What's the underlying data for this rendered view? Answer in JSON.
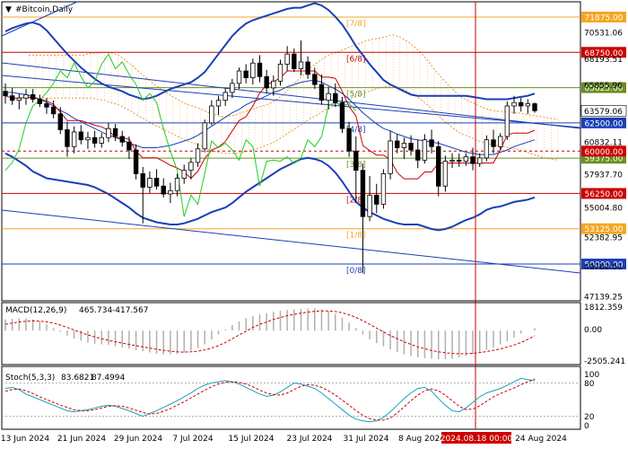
{
  "chart_data": {
    "type": "candlestick",
    "title": "#Bitcoin,Daily",
    "date_labels": [
      "13 Jun 2024",
      "21 Jun 2024",
      "29 Jun 2024",
      "7 Jul 2024",
      "15 Jul 2024",
      "23 Jul 2024",
      "31 Jul 2024",
      "8 Aug 2024",
      "16 Aug 2024",
      "24 Aug 2024"
    ],
    "crosshair_date": "2024.08.18 00:00",
    "price_scale": [
      70531.06,
      68193.51,
      65855.96,
      63579.06,
      60832.11,
      57937.7,
      55004.8,
      52382.95,
      49782.51,
      47139.25
    ],
    "ylim": [
      47139.25,
      73100
    ],
    "current_price": 63579.06,
    "murrey_levels": [
      {
        "label": "[7/8]",
        "price": 71875,
        "price_text": "71875.00",
        "color": "#f5a623"
      },
      {
        "label": "[6/8]",
        "price": 68750,
        "price_text": "68750.00",
        "color": "#cc0000"
      },
      {
        "label": "[5/8]",
        "price": 65625,
        "price_text": "65625.00",
        "color": "#6b8e23"
      },
      {
        "label": "[4/8]",
        "price": 62500,
        "price_text": "62500.00",
        "color": "#1a3fb5"
      },
      {
        "label": "[3/8]",
        "price": 59375,
        "price_text": "59375.00",
        "color": "#6b8e23"
      },
      {
        "label": "[2/8]",
        "price": 56250,
        "price_text": "56250.00",
        "color": "#cc0000"
      },
      {
        "label": "[1/8]",
        "price": 53125,
        "price_text": "53125.00",
        "color": "#f5a623"
      },
      {
        "label": "[0/8]",
        "price": 50000,
        "price_text": "50000.00",
        "color": "#1a3fb5"
      }
    ],
    "extra_level": {
      "price": 60000,
      "price_text": "60000.00",
      "color": "#cc0000",
      "style": "dashed"
    },
    "candles": [
      {
        "o": 65300,
        "h": 66000,
        "l": 64200,
        "c": 64900
      },
      {
        "o": 64900,
        "h": 65600,
        "l": 64100,
        "c": 64500
      },
      {
        "o": 64500,
        "h": 65100,
        "l": 63700,
        "c": 64700
      },
      {
        "o": 64700,
        "h": 65500,
        "l": 64100,
        "c": 65000
      },
      {
        "o": 65000,
        "h": 65500,
        "l": 64300,
        "c": 64600
      },
      {
        "o": 64600,
        "h": 65000,
        "l": 63900,
        "c": 64200
      },
      {
        "o": 64200,
        "h": 64700,
        "l": 63300,
        "c": 63900
      },
      {
        "o": 63900,
        "h": 64500,
        "l": 62900,
        "c": 63300
      },
      {
        "o": 63300,
        "h": 63900,
        "l": 61500,
        "c": 61900
      },
      {
        "o": 61900,
        "h": 62600,
        "l": 59500,
        "c": 60400
      },
      {
        "o": 60400,
        "h": 62200,
        "l": 59800,
        "c": 61700
      },
      {
        "o": 61700,
        "h": 62300,
        "l": 60600,
        "c": 61000
      },
      {
        "o": 61000,
        "h": 61700,
        "l": 60200,
        "c": 61200
      },
      {
        "o": 61200,
        "h": 61800,
        "l": 60300,
        "c": 60700
      },
      {
        "o": 60700,
        "h": 61600,
        "l": 60300,
        "c": 61200
      },
      {
        "o": 61200,
        "h": 62500,
        "l": 60800,
        "c": 62000
      },
      {
        "o": 62000,
        "h": 62400,
        "l": 60900,
        "c": 61300
      },
      {
        "o": 61300,
        "h": 61800,
        "l": 60400,
        "c": 60800
      },
      {
        "o": 60800,
        "h": 61300,
        "l": 59300,
        "c": 60100
      },
      {
        "o": 60100,
        "h": 60600,
        "l": 57500,
        "c": 58000
      },
      {
        "o": 58000,
        "h": 58600,
        "l": 53600,
        "c": 56800
      },
      {
        "o": 56800,
        "h": 58200,
        "l": 56300,
        "c": 57600
      },
      {
        "o": 57600,
        "h": 58400,
        "l": 56600,
        "c": 56900
      },
      {
        "o": 56900,
        "h": 57600,
        "l": 55900,
        "c": 56200
      },
      {
        "o": 56200,
        "h": 57200,
        "l": 55400,
        "c": 56500
      },
      {
        "o": 56500,
        "h": 58000,
        "l": 56000,
        "c": 57600
      },
      {
        "o": 57600,
        "h": 58800,
        "l": 57100,
        "c": 58300
      },
      {
        "o": 58300,
        "h": 59400,
        "l": 57500,
        "c": 59000
      },
      {
        "o": 59000,
        "h": 60700,
        "l": 58600,
        "c": 60200
      },
      {
        "o": 60200,
        "h": 62800,
        "l": 59900,
        "c": 62500
      },
      {
        "o": 62500,
        "h": 64500,
        "l": 62300,
        "c": 64000
      },
      {
        "o": 64000,
        "h": 64900,
        "l": 63200,
        "c": 64500
      },
      {
        "o": 64500,
        "h": 65600,
        "l": 64000,
        "c": 65200
      },
      {
        "o": 65200,
        "h": 66400,
        "l": 64700,
        "c": 66000
      },
      {
        "o": 66000,
        "h": 67400,
        "l": 65500,
        "c": 67100
      },
      {
        "o": 67100,
        "h": 67700,
        "l": 66000,
        "c": 66500
      },
      {
        "o": 66500,
        "h": 68200,
        "l": 65900,
        "c": 67800
      },
      {
        "o": 67800,
        "h": 68500,
        "l": 66100,
        "c": 66600
      },
      {
        "o": 66600,
        "h": 67200,
        "l": 65100,
        "c": 65600
      },
      {
        "o": 65600,
        "h": 66700,
        "l": 64900,
        "c": 66200
      },
      {
        "o": 66200,
        "h": 68100,
        "l": 65800,
        "c": 67700
      },
      {
        "o": 67700,
        "h": 69300,
        "l": 67100,
        "c": 68600
      },
      {
        "o": 68600,
        "h": 69100,
        "l": 67000,
        "c": 67300
      },
      {
        "o": 67300,
        "h": 69800,
        "l": 66700,
        "c": 67900
      },
      {
        "o": 67900,
        "h": 68400,
        "l": 66400,
        "c": 66800
      },
      {
        "o": 66800,
        "h": 67400,
        "l": 65500,
        "c": 65900
      },
      {
        "o": 65900,
        "h": 66800,
        "l": 64100,
        "c": 64500
      },
      {
        "o": 64500,
        "h": 65700,
        "l": 63700,
        "c": 65100
      },
      {
        "o": 65100,
        "h": 66000,
        "l": 63900,
        "c": 64300
      },
      {
        "o": 64300,
        "h": 64800,
        "l": 61600,
        "c": 62000
      },
      {
        "o": 62000,
        "h": 62600,
        "l": 59500,
        "c": 60000
      },
      {
        "o": 60000,
        "h": 61300,
        "l": 55500,
        "c": 58300
      },
      {
        "o": 58300,
        "h": 58900,
        "l": 49200,
        "c": 54200
      },
      {
        "o": 54200,
        "h": 57800,
        "l": 53800,
        "c": 56100
      },
      {
        "o": 56100,
        "h": 57100,
        "l": 54500,
        "c": 55300
      },
      {
        "o": 55300,
        "h": 58400,
        "l": 54900,
        "c": 58000
      },
      {
        "o": 58000,
        "h": 61800,
        "l": 57500,
        "c": 60900
      },
      {
        "o": 60900,
        "h": 61500,
        "l": 59800,
        "c": 60300
      },
      {
        "o": 60300,
        "h": 61200,
        "l": 59300,
        "c": 60700
      },
      {
        "o": 60700,
        "h": 61400,
        "l": 59600,
        "c": 60100
      },
      {
        "o": 60100,
        "h": 61000,
        "l": 58500,
        "c": 59200
      },
      {
        "o": 59200,
        "h": 61500,
        "l": 58900,
        "c": 61000
      },
      {
        "o": 61000,
        "h": 61900,
        "l": 59800,
        "c": 60400
      },
      {
        "o": 60400,
        "h": 60900,
        "l": 56000,
        "c": 56900
      },
      {
        "o": 56900,
        "h": 59600,
        "l": 56400,
        "c": 59100
      },
      {
        "o": 59100,
        "h": 59800,
        "l": 58500,
        "c": 59200
      },
      {
        "o": 59200,
        "h": 59800,
        "l": 58600,
        "c": 59100
      },
      {
        "o": 59100,
        "h": 59800,
        "l": 58700,
        "c": 59500
      },
      {
        "o": 59500,
        "h": 60300,
        "l": 58300,
        "c": 58900
      },
      {
        "o": 58900,
        "h": 59800,
        "l": 58600,
        "c": 59400
      },
      {
        "o": 59400,
        "h": 61400,
        "l": 59100,
        "c": 61000
      },
      {
        "o": 61000,
        "h": 61900,
        "l": 59800,
        "c": 60400
      },
      {
        "o": 60400,
        "h": 61600,
        "l": 60100,
        "c": 61300
      },
      {
        "o": 61300,
        "h": 64400,
        "l": 61000,
        "c": 64000
      },
      {
        "o": 64000,
        "h": 64900,
        "l": 63300,
        "c": 64300
      },
      {
        "o": 64300,
        "h": 64700,
        "l": 63500,
        "c": 64000
      },
      {
        "o": 64000,
        "h": 64600,
        "l": 63300,
        "c": 64200
      },
      {
        "o": 64200,
        "h": 64300,
        "l": 63400,
        "c": 63579
      }
    ],
    "bollinger": {
      "upper": [
        70600,
        70900,
        71100,
        71300,
        71400,
        71200,
        70700,
        70000,
        69300,
        68600,
        68000,
        67400,
        66900,
        66400,
        66000,
        65700,
        65500,
        65300,
        65000,
        64800,
        64600,
        64700,
        64900,
        65200,
        65500,
        65700,
        65900,
        66100,
        66500,
        67000,
        67800,
        68600,
        69400,
        70200,
        70800,
        71300,
        71600,
        71800,
        72000,
        72200,
        72400,
        72600,
        72700,
        72700,
        72900,
        73100,
        72900,
        72500,
        71900,
        71200,
        70300,
        69300,
        68500,
        67700,
        67000,
        66300,
        65900,
        65600,
        65300,
        65000,
        64900,
        64900,
        64900,
        64900,
        64900,
        64900,
        64900,
        64900,
        64800,
        64700,
        64600,
        64600,
        64600,
        64600,
        64700,
        64800,
        64900,
        65100
      ],
      "middle": [
        65200,
        65200,
        65100,
        65000,
        64800,
        64600,
        64300,
        64000,
        63600,
        63300,
        62900,
        62600,
        62300,
        62000,
        61700,
        61400,
        61200,
        61000,
        60700,
        60500,
        60300,
        60300,
        60300,
        60400,
        60500,
        60700,
        60900,
        61100,
        61400,
        61800,
        62200,
        62600,
        63000,
        63400,
        63700,
        64100,
        64400,
        64600,
        64900,
        65200,
        65400,
        65700,
        65900,
        66100,
        66200,
        66300,
        66100,
        65800,
        65500,
        65100,
        64600,
        64000,
        63400,
        62900,
        62400,
        62000,
        61800,
        61500,
        61300,
        61100,
        61000,
        60900,
        60800,
        60700,
        60500,
        60300,
        60100,
        59900,
        59800,
        59700,
        59700,
        59700,
        59900,
        60100,
        60400,
        60600,
        60800,
        61000
      ],
      "lower": [
        59800,
        59500,
        59100,
        58700,
        58200,
        57900,
        57600,
        57500,
        57400,
        57300,
        57200,
        57100,
        57000,
        56800,
        56500,
        56200,
        55800,
        55400,
        55000,
        54500,
        54100,
        53900,
        53700,
        53600,
        53500,
        53500,
        53600,
        53800,
        54000,
        54300,
        54600,
        54800,
        55000,
        55400,
        55900,
        56400,
        56800,
        57200,
        57600,
        58000,
        58400,
        58700,
        59000,
        59300,
        59400,
        59300,
        59100,
        58700,
        58100,
        57300,
        56400,
        55500,
        55000,
        54600,
        54300,
        54000,
        53800,
        53600,
        53500,
        53500,
        53500,
        53300,
        53100,
        53000,
        53100,
        53300,
        53600,
        53900,
        54100,
        54400,
        54800,
        55000,
        55100,
        55300,
        55500,
        55600,
        55700,
        55900
      ]
    },
    "indicators": [
      {
        "name": "MACD(12,26,9)",
        "values": [
          "465.734",
          "-417.567"
        ],
        "scale": [
          "1812.359",
          "0.00",
          "-2505.241"
        ]
      },
      {
        "name": "Stoch(5,3,3)",
        "values": [
          "83.6821",
          "87.4994"
        ],
        "scale": [
          "100",
          "80",
          "20",
          "0"
        ]
      }
    ],
    "macd_hist": [
      900,
      950,
      1000,
      980,
      900,
      750,
      500,
      200,
      -100,
      -400,
      -650,
      -800,
      -950,
      -1050,
      -1100,
      -1150,
      -1250,
      -1350,
      -1450,
      -1550,
      -1650,
      -1750,
      -1850,
      -1900,
      -1900,
      -1850,
      -1750,
      -1600,
      -1400,
      -1100,
      -700,
      -300,
      100,
      450,
      750,
      1000,
      1150,
      1300,
      1400,
      1500,
      1600,
      1650,
      1700,
      1750,
      1780,
      1790,
      1700,
      1550,
      1350,
      1050,
      650,
      200,
      -300,
      -700,
      -1000,
      -1250,
      -1500,
      -1700,
      -1900,
      -2050,
      -2150,
      -2200,
      -2250,
      -2300,
      -2300,
      -2250,
      -2150,
      -2050,
      -1900,
      -1750,
      -1550,
      -1350,
      -1100,
      -850,
      -550,
      -250,
      0,
      200
    ],
    "macd_signal": [
      500,
      600,
      700,
      750,
      780,
      760,
      700,
      600,
      450,
      250,
      50,
      -150,
      -350,
      -500,
      -650,
      -780,
      -900,
      -1000,
      -1100,
      -1200,
      -1300,
      -1400,
      -1500,
      -1580,
      -1650,
      -1700,
      -1720,
      -1700,
      -1650,
      -1550,
      -1400,
      -1200,
      -950,
      -650,
      -350,
      -50,
      250,
      500,
      700,
      900,
      1050,
      1200,
      1300,
      1400,
      1480,
      1550,
      1580,
      1580,
      1530,
      1430,
      1270,
      1060,
      800,
      500,
      200,
      -100,
      -400,
      -650,
      -900,
      -1100,
      -1300,
      -1450,
      -1600,
      -1700,
      -1780,
      -1820,
      -1850,
      -1850,
      -1820,
      -1760,
      -1680,
      -1580,
      -1460,
      -1320,
      -1150,
      -950,
      -700,
      -418
    ],
    "stoch_k": [
      70,
      72,
      68,
      60,
      55,
      50,
      45,
      40,
      35,
      30,
      28,
      30,
      32,
      35,
      38,
      40,
      38,
      34,
      30,
      25,
      20,
      25,
      30,
      36,
      42,
      48,
      55,
      62,
      70,
      76,
      80,
      82,
      84,
      82,
      78,
      72,
      66,
      60,
      56,
      58,
      64,
      72,
      80,
      78,
      74,
      70,
      62,
      52,
      42,
      32,
      22,
      15,
      12,
      10,
      12,
      18,
      28,
      40,
      52,
      62,
      70,
      72,
      65,
      52,
      40,
      30,
      28,
      35,
      45,
      55,
      62,
      66,
      70,
      76,
      82,
      88,
      86,
      84
    ],
    "stoch_d": [
      65,
      68,
      69,
      66,
      61,
      55,
      50,
      45,
      40,
      36,
      32,
      30,
      30,
      32,
      35,
      38,
      39,
      38,
      35,
      31,
      27,
      24,
      25,
      29,
      34,
      40,
      46,
      53,
      60,
      67,
      73,
      78,
      81,
      82,
      81,
      78,
      73,
      67,
      62,
      59,
      58,
      62,
      68,
      74,
      77,
      76,
      72,
      66,
      58,
      49,
      40,
      30,
      22,
      16,
      13,
      13,
      17,
      26,
      37,
      48,
      58,
      66,
      69,
      66,
      58,
      48,
      38,
      32,
      33,
      39,
      47,
      55,
      61,
      66,
      71,
      77,
      82,
      87
    ]
  }
}
